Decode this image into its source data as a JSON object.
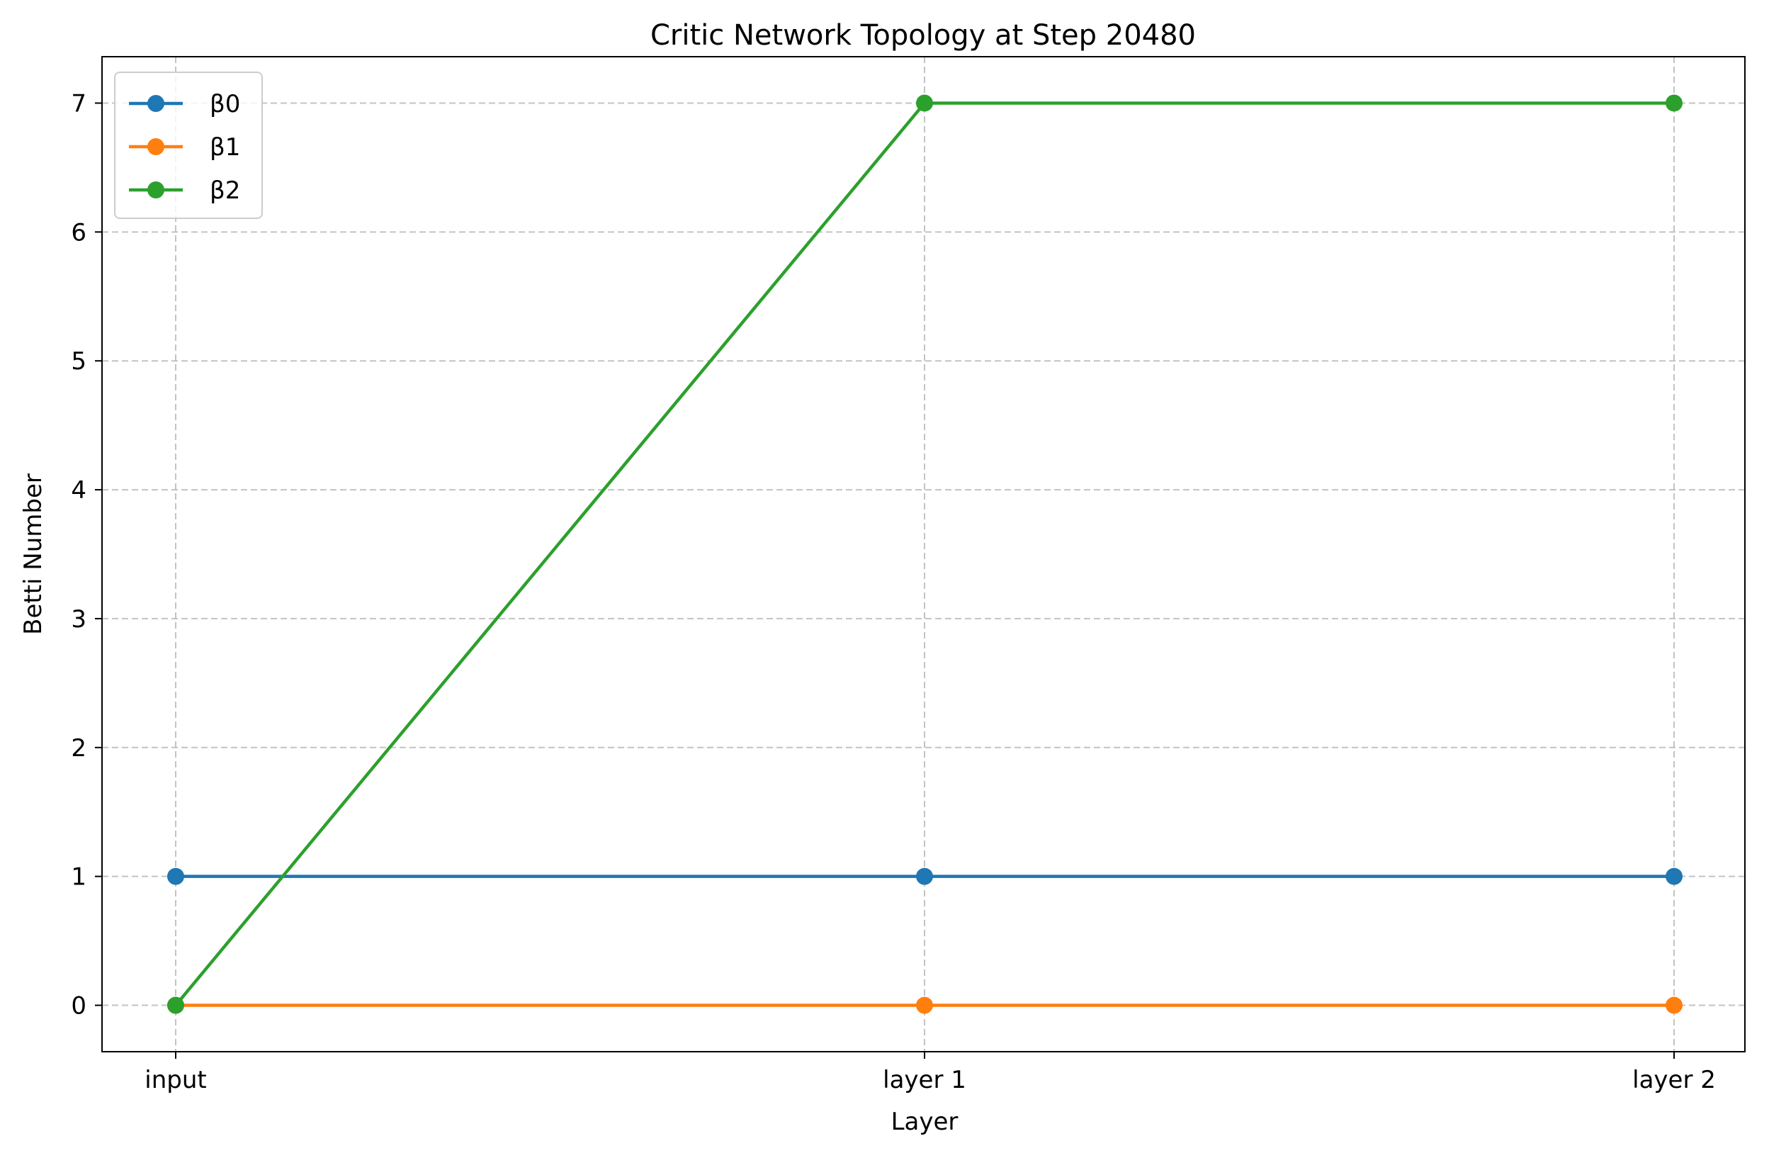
{
  "chart_data": {
    "type": "line",
    "title": "Critic Network Topology at Step 20480",
    "xlabel": "Layer",
    "ylabel": "Betti Number",
    "categories": [
      "input",
      "layer 1",
      "layer 2"
    ],
    "yticks": [
      "0",
      "1",
      "2",
      "3",
      "4",
      "5",
      "6",
      "7"
    ],
    "ylim": [
      -0.36,
      7.36
    ],
    "grid": true,
    "legend_position": "top-left",
    "marker": "circle",
    "series": [
      {
        "name": "β0",
        "color": "#1f77b4",
        "values": [
          1,
          1,
          1
        ]
      },
      {
        "name": "β1",
        "color": "#ff7f0e",
        "values": [
          0,
          0,
          0
        ]
      },
      {
        "name": "β2",
        "color": "#2ca02c",
        "values": [
          0,
          7,
          7
        ]
      }
    ]
  }
}
